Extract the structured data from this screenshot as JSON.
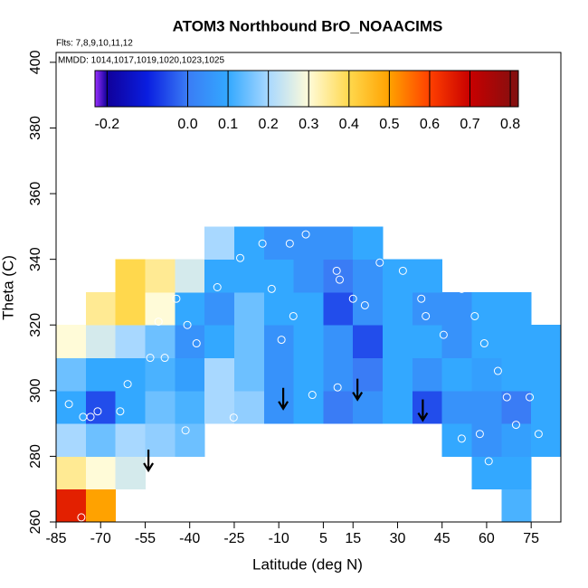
{
  "chart_data": {
    "type": "field",
    "title": "ATOM3 Northbound BrO_NOAACIMS",
    "subtitle": "Flts: 7,8,9,10,11,12",
    "annotation": "MMDD: 1014,1017,1019,1020,1023,1025",
    "x_label": "Latitude (deg N)",
    "y_label": "Theta (C)",
    "xlim": [
      -85,
      85
    ],
    "ylim": [
      260,
      403
    ],
    "xticks": [
      -85,
      -70,
      -55,
      -40,
      -25,
      -10,
      5,
      15,
      30,
      45,
      60,
      75
    ],
    "yticks": [
      260,
      280,
      300,
      320,
      340,
      360,
      380,
      400
    ],
    "field": {
      "lat": [
        -80,
        -70,
        -60,
        -50,
        -40,
        -30,
        -20,
        -10,
        0,
        10,
        20,
        30,
        40,
        50,
        60,
        70,
        80
      ],
      "theta": [
        265,
        275,
        285,
        295,
        305,
        315,
        325,
        335,
        345
      ],
      "values": [
        [
          0.65,
          0.5,
          null,
          null,
          null,
          null,
          null,
          null,
          null,
          null,
          null,
          null,
          null,
          null,
          null,
          0.12,
          null
        ],
        [
          0.35,
          0.3,
          0.25,
          null,
          null,
          null,
          null,
          null,
          null,
          null,
          null,
          null,
          null,
          null,
          0.1,
          0.1,
          null
        ],
        [
          0.2,
          0.15,
          0.2,
          0.18,
          0.15,
          null,
          null,
          null,
          null,
          null,
          null,
          null,
          null,
          0.1,
          0.05,
          0.08,
          0.1
        ],
        [
          0.1,
          -0.05,
          0.1,
          0.15,
          0.12,
          0.2,
          0.18,
          0.05,
          0.1,
          0.0,
          0.05,
          0.1,
          -0.05,
          0.05,
          0.05,
          0.0,
          0.1
        ],
        [
          0.15,
          0.1,
          0.1,
          0.12,
          0.08,
          0.2,
          0.15,
          0.05,
          0.1,
          0.05,
          0.0,
          0.1,
          0.05,
          0.1,
          0.08,
          0.1,
          0.1
        ],
        [
          0.3,
          0.25,
          0.2,
          0.15,
          0.05,
          0.1,
          0.15,
          0.05,
          0.1,
          0.05,
          -0.05,
          0.1,
          0.1,
          0.05,
          0.1,
          0.1,
          0.1
        ],
        [
          null,
          0.35,
          0.4,
          0.3,
          0.1,
          0.05,
          0.15,
          0.1,
          0.1,
          -0.05,
          0.05,
          0.1,
          0.05,
          0.05,
          0.1,
          0.1,
          null
        ],
        [
          null,
          null,
          0.4,
          0.35,
          0.25,
          0.1,
          0.1,
          0.1,
          0.05,
          0.0,
          0.05,
          0.1,
          0.1,
          null,
          null,
          null,
          null
        ],
        [
          null,
          null,
          null,
          null,
          null,
          0.2,
          0.1,
          0.05,
          0.05,
          0.05,
          0.1,
          null,
          null,
          null,
          null,
          null,
          null
        ]
      ]
    },
    "points": {
      "color": "#ffffff",
      "x": [
        -80.7,
        -75.9,
        -73.4,
        -71,
        -63.4,
        -60.9,
        -53.3,
        -48.4,
        -50.5,
        -44.5,
        -40.8,
        -37.7,
        -30.7,
        -23,
        -15.5,
        -6.3,
        -0.9,
        9.5,
        10.5,
        15,
        19,
        24,
        31.8,
        38,
        39.5,
        45.5,
        51.6,
        56,
        59.2,
        63.8,
        66.8,
        69.9,
        74.5,
        77.5,
        57.7,
        51.6,
        60.7,
        -76.5,
        -41.4,
        -25.2,
        1.3,
        9.8,
        -9.1,
        -5.1,
        -12.4
      ],
      "y": [
        295.9,
        292,
        292,
        293.7,
        293.7,
        302,
        310,
        310,
        321,
        328,
        320,
        314.4,
        331.5,
        340.4,
        344.8,
        344.8,
        347.6,
        336.5,
        333.8,
        328,
        326,
        339,
        336.5,
        328,
        322.7,
        317,
        331,
        322.7,
        314.4,
        306,
        298,
        289.6,
        298,
        286.8,
        286.8,
        285.4,
        278.5,
        261.4,
        287.9,
        291.8,
        298.7,
        301,
        315.5,
        322.7,
        331
      ]
    },
    "arrows": {
      "x": [
        -53.9,
        -8.5,
        16.5,
        38.5
      ],
      "y": [
        275.7,
        294.5,
        297.3,
        291
      ]
    },
    "colorbar": {
      "lim": [
        -0.23,
        0.82
      ],
      "ticks": [
        -0.2,
        {
          "value": 0,
          "label": "0.0"
        },
        0.1,
        0.2,
        0.3,
        0.4,
        0.5,
        0.6,
        0.7,
        0.8
      ],
      "stops": [
        -0.23,
        -0.2,
        -0.1,
        0.0,
        0.1,
        0.2,
        0.3,
        0.4,
        0.5,
        0.6,
        0.7,
        0.82
      ],
      "colors": [
        "#9b30ff",
        "#10009a",
        "#0a1ee0",
        "#3a7cf5",
        "#33a8ff",
        "#a8d8ff",
        "#fffbd8",
        "#ffd84d",
        "#ffa200",
        "#ff4000",
        "#c80000",
        "#801010"
      ]
    }
  }
}
